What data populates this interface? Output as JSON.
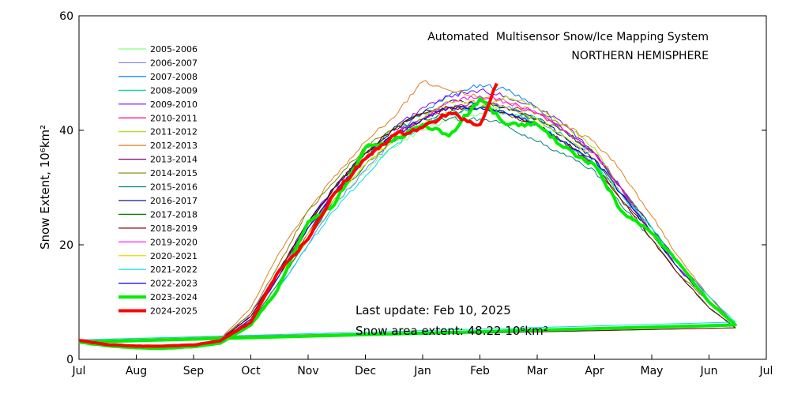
{
  "chart_data": {
    "type": "line",
    "title": "Automated  Multisensor Snow/Ice Mapping System",
    "subtitle": "NORTHERN HEMISPHERE",
    "ylabel": "Snow Extent, 10⁶km²",
    "xlabel": "",
    "ylim": [
      0,
      60
    ],
    "yticks": [
      "0",
      "20",
      "40",
      "60"
    ],
    "xticks": [
      "Jul",
      "Aug",
      "Sep",
      "Oct",
      "Nov",
      "Dec",
      "Jan",
      "Feb",
      "Mar",
      "Apr",
      "May",
      "Jun",
      "Jul"
    ],
    "grid": false,
    "legend_placement": "top-left",
    "annotations": {
      "last_update": "Last update: Feb 10, 2025",
      "extent": "Snow area extent: 48.22 10⁶km²"
    },
    "x": [
      "07-01",
      "07-15",
      "08-01",
      "08-15",
      "09-01",
      "09-15",
      "10-01",
      "10-15",
      "11-01",
      "11-15",
      "12-01",
      "12-15",
      "01-01",
      "01-15",
      "02-01",
      "02-15",
      "03-01",
      "03-15",
      "04-01",
      "04-15",
      "05-01",
      "05-15",
      "06-01",
      "06-15",
      "07-01"
    ],
    "series": [
      {
        "name": "2005-2006",
        "color": "#80ff80",
        "values": [
          3.2,
          2.6,
          2.2,
          2.1,
          2.3,
          3.0,
          6.0,
          13,
          21,
          27,
          33,
          37,
          40,
          42,
          43,
          44,
          43,
          40,
          36,
          30,
          22,
          16,
          10,
          6,
          3.2
        ]
      },
      {
        "name": "2006-2007",
        "color": "#8080ff",
        "values": [
          3.1,
          2.5,
          2.1,
          2.1,
          2.3,
          3.1,
          6.5,
          12,
          20,
          27,
          33,
          38,
          41,
          43,
          45,
          44,
          42,
          39,
          35,
          29,
          23,
          17,
          10,
          6,
          3.3
        ]
      },
      {
        "name": "2007-2008",
        "color": "#0080ff",
        "values": [
          3.3,
          2.6,
          2.2,
          2.2,
          2.4,
          3.3,
          7.5,
          14,
          23,
          29,
          35,
          39,
          43,
          46,
          48,
          47,
          44,
          40,
          36,
          30,
          22,
          16,
          10,
          6,
          3.3
        ]
      },
      {
        "name": "2008-2009",
        "color": "#00e0a0",
        "values": [
          3.2,
          2.6,
          2.2,
          2.2,
          2.5,
          3.2,
          7.0,
          14,
          22,
          29,
          35,
          40,
          43,
          44,
          45,
          44,
          42,
          39,
          35,
          29,
          22,
          16,
          10,
          6,
          3.3
        ]
      },
      {
        "name": "2009-2010",
        "color": "#8000ff",
        "values": [
          3.3,
          2.7,
          2.3,
          2.3,
          2.5,
          3.5,
          8.0,
          15,
          24,
          30,
          36,
          40,
          44,
          46,
          47,
          46,
          44,
          41,
          36,
          30,
          23,
          17,
          11,
          6,
          3.4
        ]
      },
      {
        "name": "2010-2011",
        "color": "#ff0080",
        "values": [
          3.2,
          2.6,
          2.2,
          2.2,
          2.4,
          3.3,
          7.0,
          15,
          23,
          29,
          35,
          39,
          42,
          44,
          45,
          44,
          43,
          40,
          36,
          30,
          22,
          16,
          10,
          6,
          3.3
        ]
      },
      {
        "name": "2011-2012",
        "color": "#a0e000",
        "values": [
          3.1,
          2.5,
          2.1,
          2.1,
          2.3,
          3.0,
          6.5,
          13,
          21,
          28,
          34,
          38,
          41,
          43,
          44,
          46,
          44,
          41,
          37,
          30,
          22,
          16,
          10,
          6,
          3.2
        ]
      },
      {
        "name": "2012-2013",
        "color": "#e08020",
        "values": [
          3.2,
          2.6,
          2.2,
          2.2,
          2.5,
          3.5,
          9.0,
          18,
          26,
          32,
          38,
          42,
          48.5,
          47,
          46,
          45,
          43,
          41,
          38,
          33,
          25,
          18,
          11,
          6,
          3.4
        ]
      },
      {
        "name": "2013-2014",
        "color": "#800060",
        "values": [
          3.2,
          2.6,
          2.2,
          2.2,
          2.4,
          3.3,
          7.0,
          14,
          22,
          29,
          35,
          39,
          42,
          44,
          44,
          43,
          41,
          38,
          34,
          28,
          22,
          16,
          10,
          6,
          3.2
        ]
      },
      {
        "name": "2014-2015",
        "color": "#808000",
        "values": [
          3.2,
          2.6,
          2.2,
          2.2,
          2.5,
          3.4,
          8.0,
          16,
          26,
          31,
          37,
          40,
          43,
          44,
          44,
          43,
          41,
          38,
          34,
          28,
          21,
          15,
          10,
          6,
          3.2
        ]
      },
      {
        "name": "2015-2016",
        "color": "#008080",
        "values": [
          3.1,
          2.5,
          2.1,
          2.1,
          2.3,
          3.1,
          6.5,
          13,
          21,
          28,
          34,
          38,
          41,
          42,
          42,
          41,
          38,
          36,
          33,
          27,
          21,
          15,
          9,
          5.5,
          3.1
        ]
      },
      {
        "name": "2016-2017",
        "color": "#000080",
        "values": [
          3.2,
          2.6,
          2.2,
          2.2,
          2.4,
          3.4,
          7.5,
          15,
          24,
          30,
          36,
          40,
          43,
          45,
          45,
          44,
          42,
          39,
          35,
          29,
          22,
          16,
          10,
          6,
          3.3
        ]
      },
      {
        "name": "2017-2018",
        "color": "#008000",
        "values": [
          3.2,
          2.6,
          2.2,
          2.2,
          2.4,
          3.3,
          7.0,
          15,
          23,
          30,
          36,
          40,
          42,
          43,
          44,
          43,
          42,
          40,
          36,
          30,
          23,
          17,
          10,
          6,
          3.3
        ]
      },
      {
        "name": "2018-2019",
        "color": "#800000",
        "values": [
          3.2,
          2.6,
          2.2,
          2.2,
          2.4,
          3.3,
          7.5,
          15,
          24,
          30,
          36,
          40,
          43,
          44,
          44,
          43,
          41,
          38,
          34,
          28,
          21,
          15,
          9,
          5.5,
          3.2
        ]
      },
      {
        "name": "2019-2020",
        "color": "#ff00ff",
        "values": [
          3.2,
          2.6,
          2.2,
          2.2,
          2.4,
          3.3,
          7.0,
          14,
          23,
          29,
          35,
          39,
          42,
          45,
          46,
          45,
          43,
          40,
          36,
          30,
          22,
          16,
          10,
          6,
          3.3
        ]
      },
      {
        "name": "2020-2021",
        "color": "#e0e000",
        "values": [
          3.2,
          2.6,
          2.2,
          2.2,
          2.4,
          3.2,
          7.0,
          14,
          22,
          28,
          34,
          38,
          42,
          45,
          45,
          44,
          42,
          39,
          35,
          29,
          22,
          16,
          10,
          6,
          3.3
        ]
      },
      {
        "name": "2021-2022",
        "color": "#00e0e0",
        "values": [
          3.1,
          2.5,
          2.1,
          2.1,
          2.3,
          3.0,
          6.0,
          12,
          20,
          26,
          32,
          37,
          41,
          43,
          44,
          43,
          41,
          38,
          34,
          29,
          23,
          17,
          11,
          6.5,
          3.4
        ]
      },
      {
        "name": "2022-2023",
        "color": "#0000ff",
        "values": [
          3.2,
          2.6,
          2.2,
          2.2,
          2.4,
          3.2,
          7.0,
          14,
          23,
          29,
          35,
          39,
          42,
          44,
          44,
          43,
          41,
          38,
          35,
          29,
          22,
          16,
          10,
          6,
          3.2
        ]
      },
      {
        "name": "2023-2024",
        "color": "#00ee00",
        "bold": true,
        "values": [
          3.0,
          2.4,
          2.0,
          1.9,
          2.2,
          2.8,
          6.0,
          12,
          24,
          27,
          37,
          38,
          41,
          39,
          45.5,
          41,
          41,
          37,
          34,
          26,
          22,
          17,
          10,
          6,
          3.0
        ]
      },
      {
        "name": "2024-2025",
        "color": "#ff0000",
        "bold": true,
        "x": [
          "07-01",
          "07-15",
          "08-01",
          "08-15",
          "09-01",
          "09-15",
          "10-01",
          "10-15",
          "11-01",
          "11-15",
          "12-01",
          "12-15",
          "01-01",
          "01-15",
          "02-01",
          "02-10"
        ],
        "values": [
          3.3,
          2.6,
          2.3,
          2.3,
          2.5,
          3.2,
          6.5,
          15,
          21,
          29,
          35,
          39,
          40.5,
          43,
          41,
          48.2
        ]
      }
    ]
  }
}
